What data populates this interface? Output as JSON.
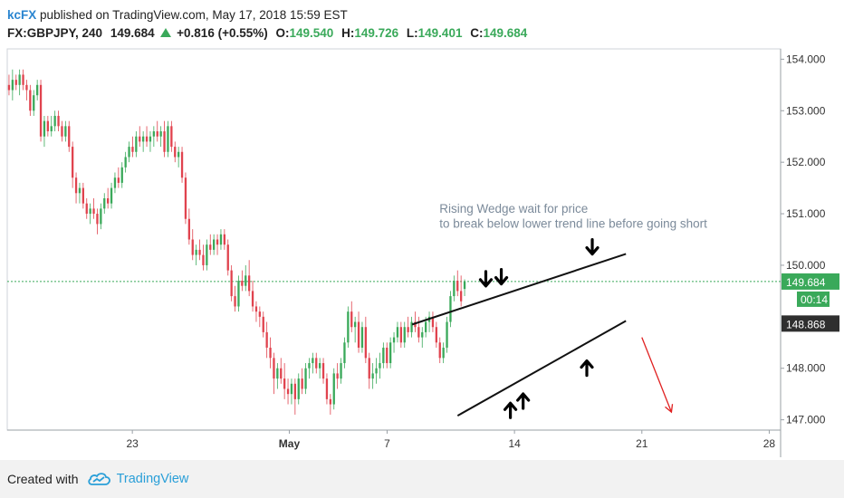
{
  "header": {
    "publisher": "kcFX",
    "published_text": "published on TradingView.com, May 17, 2018 15:59 EST",
    "symbol": "FX:GBPJPY, 240",
    "last": "149.684",
    "change": "+0.816 (+0.55%)",
    "open_label": "O:",
    "open": "149.540",
    "high_label": "H:",
    "high": "149.726",
    "low_label": "L:",
    "low": "149.401",
    "close_label": "C:",
    "close": "149.684"
  },
  "footer": {
    "created_with": "Created with",
    "brand": "TradingView"
  },
  "colors": {
    "up": "#3aa95a",
    "down": "#e0434e",
    "accent": "#2a85d0",
    "arrow": "#e02020"
  },
  "chart_data": {
    "type": "candlestick",
    "symbol": "GBPJPY",
    "timeframe": "240",
    "ylim": [
      146.8,
      154.2
    ],
    "y_ticks": [
      "154.000",
      "153.000",
      "152.000",
      "151.000",
      "150.000",
      "148.000",
      "147.000"
    ],
    "x_ticks": [
      {
        "label": "23",
        "bar": 27.5
      },
      {
        "label": "May",
        "bar": 62
      },
      {
        "label": "7",
        "bar": 83.5
      },
      {
        "label": "14",
        "bar": 111.5
      },
      {
        "label": "21",
        "bar": 139.5
      },
      {
        "label": "28",
        "bar": 167.5
      }
    ],
    "bar_count_axis": 170,
    "candles": [
      [
        153.5,
        153.7,
        153.3,
        153.4
      ],
      [
        153.4,
        153.8,
        153.2,
        153.6
      ],
      [
        153.6,
        153.7,
        153.4,
        153.5
      ],
      [
        153.5,
        153.8,
        153.3,
        153.7
      ],
      [
        153.7,
        153.8,
        153.4,
        153.5
      ],
      [
        153.5,
        153.6,
        153.2,
        153.4
      ],
      [
        153.4,
        153.5,
        152.9,
        153.0
      ],
      [
        153.0,
        153.4,
        152.9,
        153.3
      ],
      [
        153.3,
        153.6,
        153.2,
        153.5
      ],
      [
        153.5,
        153.6,
        152.4,
        152.5
      ],
      [
        152.5,
        152.9,
        152.3,
        152.8
      ],
      [
        152.8,
        152.9,
        152.5,
        152.6
      ],
      [
        152.6,
        152.9,
        152.5,
        152.7
      ],
      [
        152.7,
        153.0,
        152.6,
        152.9
      ],
      [
        152.9,
        153.0,
        152.6,
        152.7
      ],
      [
        152.7,
        152.8,
        152.4,
        152.5
      ],
      [
        152.5,
        152.8,
        152.4,
        152.7
      ],
      [
        152.7,
        152.8,
        152.2,
        152.3
      ],
      [
        152.3,
        152.4,
        151.5,
        151.7
      ],
      [
        151.7,
        151.8,
        151.2,
        151.4
      ],
      [
        151.4,
        151.6,
        151.2,
        151.5
      ],
      [
        151.5,
        151.6,
        151.1,
        151.2
      ],
      [
        151.2,
        151.3,
        150.9,
        151.0
      ],
      [
        151.0,
        151.2,
        150.8,
        151.1
      ],
      [
        151.1,
        151.3,
        150.9,
        151.0
      ],
      [
        151.0,
        151.1,
        150.6,
        150.8
      ],
      [
        150.8,
        151.2,
        150.7,
        151.1
      ],
      [
        151.1,
        151.4,
        151.0,
        151.3
      ],
      [
        151.3,
        151.5,
        151.1,
        151.2
      ],
      [
        151.2,
        151.6,
        151.1,
        151.5
      ],
      [
        151.5,
        151.8,
        151.4,
        151.7
      ],
      [
        151.7,
        151.9,
        151.5,
        151.6
      ],
      [
        151.6,
        152.0,
        151.5,
        151.9
      ],
      [
        151.9,
        152.2,
        151.8,
        152.1
      ],
      [
        152.1,
        152.4,
        152.0,
        152.3
      ],
      [
        152.3,
        152.5,
        152.1,
        152.2
      ],
      [
        152.2,
        152.6,
        152.1,
        152.5
      ],
      [
        152.5,
        152.7,
        152.3,
        152.4
      ],
      [
        152.4,
        152.6,
        152.2,
        152.5
      ],
      [
        152.5,
        152.7,
        152.3,
        152.4
      ],
      [
        152.4,
        152.6,
        152.2,
        152.5
      ],
      [
        152.5,
        152.7,
        152.3,
        152.6
      ],
      [
        152.6,
        152.8,
        152.4,
        152.5
      ],
      [
        152.5,
        152.7,
        152.3,
        152.6
      ],
      [
        152.6,
        152.8,
        152.1,
        152.2
      ],
      [
        152.2,
        152.8,
        152.1,
        152.7
      ],
      [
        152.7,
        152.8,
        152.2,
        152.3
      ],
      [
        152.3,
        152.4,
        152.0,
        152.1
      ],
      [
        152.1,
        152.3,
        151.9,
        152.2
      ],
      [
        152.2,
        152.3,
        151.6,
        151.7
      ],
      [
        151.7,
        151.8,
        150.8,
        150.9
      ],
      [
        150.9,
        151.1,
        150.4,
        150.5
      ],
      [
        150.5,
        150.7,
        150.1,
        150.2
      ],
      [
        150.2,
        150.4,
        150.0,
        150.3
      ],
      [
        150.3,
        150.5,
        150.1,
        150.2
      ],
      [
        150.2,
        150.4,
        149.9,
        150.0
      ],
      [
        150.0,
        150.5,
        149.9,
        150.4
      ],
      [
        150.4,
        150.6,
        150.2,
        150.3
      ],
      [
        150.3,
        150.6,
        150.2,
        150.5
      ],
      [
        150.5,
        150.6,
        150.2,
        150.4
      ],
      [
        150.4,
        150.7,
        150.3,
        150.6
      ],
      [
        150.6,
        150.7,
        150.3,
        150.4
      ],
      [
        150.4,
        150.5,
        149.8,
        149.9
      ],
      [
        149.9,
        150.0,
        149.3,
        149.4
      ],
      [
        149.4,
        149.6,
        149.1,
        149.2
      ],
      [
        149.2,
        149.8,
        149.1,
        149.7
      ],
      [
        149.7,
        149.9,
        149.5,
        149.6
      ],
      [
        149.6,
        150.0,
        149.5,
        149.8
      ],
      [
        149.8,
        150.1,
        149.4,
        149.5
      ],
      [
        149.5,
        149.7,
        149.1,
        149.2
      ],
      [
        149.2,
        149.3,
        148.9,
        149.1
      ],
      [
        149.1,
        149.2,
        148.8,
        149.0
      ],
      [
        149.0,
        149.1,
        148.6,
        148.7
      ],
      [
        148.7,
        148.9,
        148.2,
        148.4
      ],
      [
        148.4,
        148.6,
        148.0,
        148.2
      ],
      [
        148.2,
        148.3,
        147.5,
        147.8
      ],
      [
        147.8,
        148.1,
        147.6,
        148.0
      ],
      [
        148.0,
        148.2,
        147.7,
        147.8
      ],
      [
        147.8,
        148.1,
        147.4,
        147.6
      ],
      [
        147.6,
        147.8,
        147.3,
        147.5
      ],
      [
        147.5,
        147.8,
        147.3,
        147.7
      ],
      [
        147.7,
        147.8,
        147.1,
        147.4
      ],
      [
        147.4,
        147.9,
        147.3,
        147.8
      ],
      [
        147.8,
        148.0,
        147.5,
        147.6
      ],
      [
        147.6,
        148.1,
        147.5,
        148.0
      ],
      [
        148.0,
        148.2,
        147.8,
        148.1
      ],
      [
        148.1,
        148.3,
        147.9,
        148.2
      ],
      [
        148.2,
        148.3,
        147.9,
        148.0
      ],
      [
        148.0,
        148.2,
        147.8,
        148.1
      ],
      [
        148.1,
        148.2,
        147.7,
        147.8
      ],
      [
        147.8,
        147.9,
        147.3,
        147.4
      ],
      [
        147.4,
        147.5,
        147.1,
        147.3
      ],
      [
        147.3,
        148.0,
        147.2,
        147.9
      ],
      [
        147.9,
        148.1,
        147.6,
        147.8
      ],
      [
        147.8,
        148.2,
        147.7,
        148.1
      ],
      [
        148.1,
        148.6,
        148.0,
        148.5
      ],
      [
        148.5,
        149.2,
        148.4,
        149.1
      ],
      [
        149.1,
        149.3,
        148.7,
        148.8
      ],
      [
        148.8,
        149.0,
        148.5,
        148.9
      ],
      [
        148.9,
        149.1,
        148.3,
        148.4
      ],
      [
        148.4,
        148.9,
        148.3,
        148.8
      ],
      [
        148.8,
        149.0,
        148.1,
        148.2
      ],
      [
        148.2,
        148.3,
        147.6,
        147.8
      ],
      [
        147.8,
        148.1,
        147.6,
        147.9
      ],
      [
        147.9,
        148.2,
        147.7,
        148.0
      ],
      [
        148.0,
        148.3,
        147.8,
        148.1
      ],
      [
        148.1,
        148.5,
        148.0,
        148.4
      ],
      [
        148.4,
        148.5,
        148.0,
        148.1
      ],
      [
        148.1,
        148.6,
        148.0,
        148.5
      ],
      [
        148.5,
        148.7,
        148.3,
        148.6
      ],
      [
        148.6,
        148.9,
        148.5,
        148.8
      ],
      [
        148.8,
        148.9,
        148.4,
        148.5
      ],
      [
        148.5,
        148.9,
        148.4,
        148.8
      ],
      [
        148.8,
        149.0,
        148.6,
        148.7
      ],
      [
        148.7,
        149.0,
        148.6,
        148.9
      ],
      [
        148.9,
        149.1,
        148.7,
        148.8
      ],
      [
        148.8,
        149.0,
        148.5,
        148.6
      ],
      [
        148.6,
        148.8,
        148.4,
        148.7
      ],
      [
        148.7,
        149.0,
        148.6,
        148.9
      ],
      [
        148.9,
        149.1,
        148.7,
        149.0
      ],
      [
        149.0,
        149.1,
        148.7,
        148.8
      ],
      [
        148.8,
        148.9,
        148.4,
        148.5
      ],
      [
        148.5,
        148.6,
        148.1,
        148.2
      ],
      [
        148.2,
        148.5,
        148.1,
        148.4
      ],
      [
        148.4,
        149.0,
        148.3,
        148.9
      ],
      [
        148.9,
        149.5,
        148.8,
        149.4
      ],
      [
        149.4,
        149.8,
        149.3,
        149.7
      ],
      [
        149.7,
        149.9,
        149.4,
        149.5
      ],
      [
        149.5,
        149.8,
        149.2,
        149.3
      ],
      [
        149.54,
        149.726,
        149.401,
        149.684
      ]
    ],
    "price_labels": [
      {
        "value": "149.684",
        "kind": "last"
      },
      {
        "value": "00:14",
        "kind": "countdown"
      },
      {
        "value": "148.868",
        "kind": "crosshair"
      }
    ],
    "trendlines": [
      {
        "name": "upper",
        "from": [
          89,
          148.85
        ],
        "to": [
          136,
          150.22
        ]
      },
      {
        "name": "lower",
        "from": [
          99,
          147.08
        ],
        "to": [
          136,
          148.92
        ]
      }
    ],
    "annotations": [
      {
        "text": "Rising Wedge wait for price",
        "bar": 95,
        "y": 151.02
      },
      {
        "text": "to break below lower trend line before going short",
        "bar": 95,
        "y": 150.73
      }
    ],
    "markers": [
      {
        "dir": "down",
        "bar": 105.2,
        "y": 149.72
      },
      {
        "dir": "down",
        "bar": 108.6,
        "y": 149.76
      },
      {
        "dir": "down",
        "bar": 128.6,
        "y": 150.34
      },
      {
        "dir": "up",
        "bar": 110.6,
        "y": 147.2
      },
      {
        "dir": "up",
        "bar": 113.4,
        "y": 147.38
      },
      {
        "dir": "up",
        "bar": 127.4,
        "y": 148.02
      }
    ],
    "forecast_arrow": {
      "from": [
        139.5,
        148.6
      ],
      "to": [
        146,
        147.15
      ]
    }
  }
}
